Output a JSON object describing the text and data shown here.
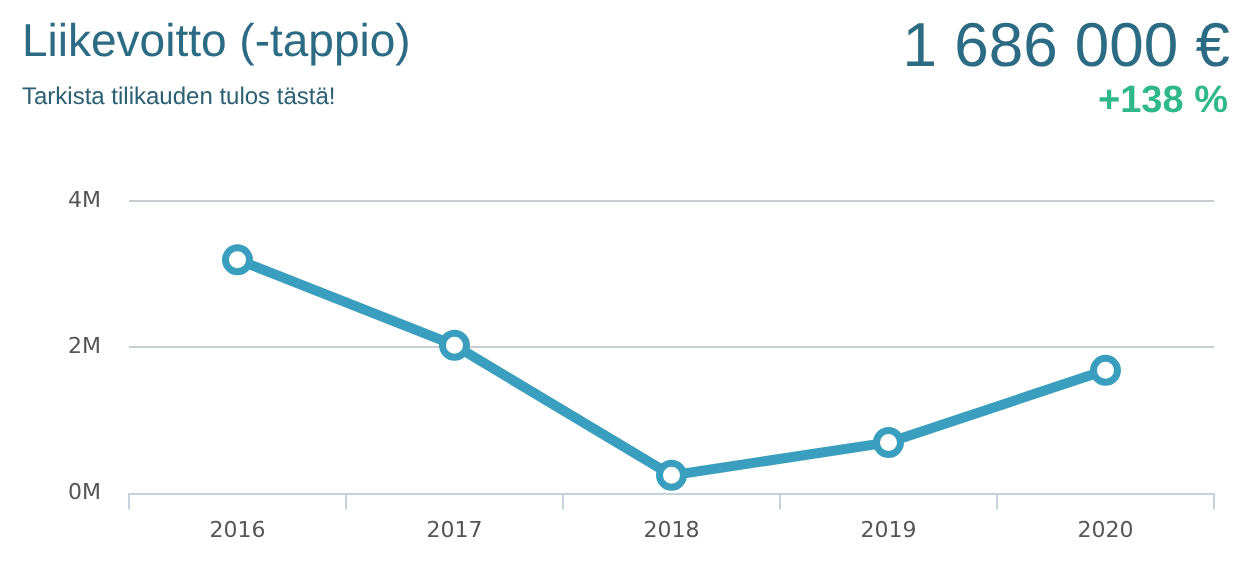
{
  "chart_data": {
    "type": "line",
    "title": "Liikevoitto (-tappio)",
    "subtitle": "Tarkista tilikauden tulos tästä!",
    "annotations": [
      "1 686 000 €",
      "+138 %"
    ],
    "categories": [
      "2016",
      "2017",
      "2018",
      "2019",
      "2020"
    ],
    "series": [
      {
        "color": "#3a9fbf",
        "values": [
          3.2,
          2.03,
          0.25,
          0.7,
          1.686
        ]
      }
    ],
    "ylim": [
      0,
      4
    ],
    "yticks": [
      {
        "value": 0,
        "label": "0M"
      },
      {
        "value": 2,
        "label": "2M"
      },
      {
        "value": 4,
        "label": "4M"
      }
    ],
    "grid": "y",
    "legend": false,
    "marker": "circle",
    "line_style": "solid"
  }
}
